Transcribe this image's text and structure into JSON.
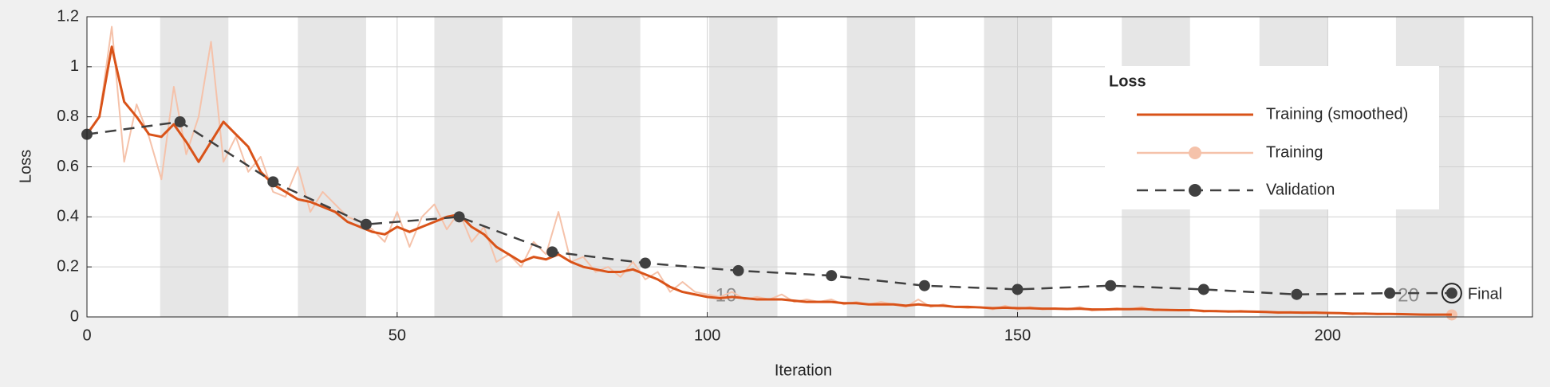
{
  "chart_data": {
    "type": "line",
    "xlabel": "Iteration",
    "ylabel": "Loss",
    "xlim": [
      0,
      233
    ],
    "ylim": [
      0,
      1.2
    ],
    "xticks": [
      0,
      50,
      100,
      150,
      200
    ],
    "yticks": [
      0,
      0.2,
      0.4,
      0.6,
      0.8,
      1,
      1.2
    ],
    "grid": true,
    "epoch_shading": [
      [
        11.8,
        22.8
      ],
      [
        34,
        45
      ],
      [
        56,
        67
      ],
      [
        78.2,
        89.2
      ],
      [
        100.3,
        111.3
      ],
      [
        122.5,
        133.5
      ],
      [
        144.6,
        155.6
      ],
      [
        166.8,
        177.8
      ],
      [
        189,
        200
      ],
      [
        211,
        222
      ]
    ],
    "epoch_labels": [
      {
        "value": 103,
        "label": "10"
      },
      {
        "value": 213,
        "label": "20"
      }
    ],
    "legend_title": "Loss",
    "final_label": "Final",
    "x": [
      0,
      2,
      4,
      6,
      8,
      10,
      12,
      14,
      16,
      18,
      20,
      22,
      24,
      26,
      28,
      30,
      32,
      34,
      36,
      38,
      40,
      42,
      44,
      46,
      48,
      50,
      52,
      54,
      56,
      58,
      60,
      62,
      64,
      66,
      68,
      70,
      72,
      74,
      76,
      78,
      80,
      82,
      84,
      86,
      88,
      90,
      92,
      94,
      96,
      98,
      100,
      102,
      104,
      106,
      108,
      110,
      112,
      114,
      116,
      118,
      120,
      122,
      124,
      126,
      128,
      130,
      132,
      134,
      136,
      138,
      140,
      142,
      144,
      146,
      148,
      150,
      152,
      154,
      156,
      158,
      160,
      162,
      164,
      166,
      168,
      170,
      172,
      174,
      176,
      178,
      180,
      182,
      184,
      186,
      188,
      190,
      192,
      194,
      196,
      198,
      200,
      202,
      204,
      206,
      208,
      210,
      212,
      214,
      216,
      218,
      220
    ],
    "series": [
      {
        "name": "Training (smoothed)",
        "color": "#d95319",
        "values": [
          0.73,
          0.8,
          1.08,
          0.86,
          0.8,
          0.73,
          0.72,
          0.77,
          0.7,
          0.62,
          0.7,
          0.78,
          0.73,
          0.68,
          0.58,
          0.53,
          0.5,
          0.47,
          0.46,
          0.44,
          0.42,
          0.38,
          0.36,
          0.34,
          0.33,
          0.36,
          0.34,
          0.36,
          0.38,
          0.4,
          0.41,
          0.36,
          0.33,
          0.28,
          0.25,
          0.22,
          0.24,
          0.23,
          0.25,
          0.22,
          0.2,
          0.19,
          0.18,
          0.18,
          0.19,
          0.17,
          0.15,
          0.12,
          0.1,
          0.09,
          0.08,
          0.075,
          0.08,
          0.075,
          0.07,
          0.07,
          0.07,
          0.065,
          0.06,
          0.06,
          0.06,
          0.055,
          0.055,
          0.05,
          0.05,
          0.05,
          0.045,
          0.05,
          0.045,
          0.045,
          0.04,
          0.04,
          0.038,
          0.035,
          0.037,
          0.035,
          0.035,
          0.033,
          0.033,
          0.032,
          0.033,
          0.03,
          0.03,
          0.031,
          0.031,
          0.032,
          0.029,
          0.028,
          0.027,
          0.027,
          0.024,
          0.023,
          0.022,
          0.022,
          0.021,
          0.02,
          0.018,
          0.018,
          0.017,
          0.017,
          0.016,
          0.015,
          0.013,
          0.013,
          0.012,
          0.012,
          0.011,
          0.01,
          0.009,
          0.009,
          0.009
        ]
      },
      {
        "name": "Training",
        "color": "#f5c2aa",
        "values": [
          0.73,
          0.8,
          1.16,
          0.62,
          0.85,
          0.72,
          0.55,
          0.92,
          0.65,
          0.8,
          1.1,
          0.62,
          0.72,
          0.58,
          0.64,
          0.5,
          0.48,
          0.6,
          0.42,
          0.5,
          0.45,
          0.4,
          0.38,
          0.35,
          0.3,
          0.42,
          0.28,
          0.4,
          0.45,
          0.35,
          0.42,
          0.3,
          0.36,
          0.22,
          0.25,
          0.2,
          0.3,
          0.25,
          0.42,
          0.22,
          0.24,
          0.18,
          0.2,
          0.16,
          0.22,
          0.15,
          0.18,
          0.1,
          0.14,
          0.1,
          0.09,
          0.08,
          0.1,
          0.07,
          0.08,
          0.07,
          0.09,
          0.06,
          0.07,
          0.06,
          0.07,
          0.05,
          0.06,
          0.05,
          0.06,
          0.05,
          0.04,
          0.07,
          0.04,
          0.05,
          0.04,
          0.035,
          0.04,
          0.03,
          0.045,
          0.03,
          0.04,
          0.03,
          0.035,
          0.03,
          0.04,
          0.025,
          0.03,
          0.035,
          0.03,
          0.04,
          0.025,
          0.03,
          0.025,
          0.03,
          0.02,
          0.025,
          0.02,
          0.025,
          0.02,
          0.02,
          0.015,
          0.02,
          0.015,
          0.02,
          0.015,
          0.015,
          0.01,
          0.015,
          0.01,
          0.012,
          0.01,
          0.01,
          0.008,
          0.01,
          0.008
        ]
      },
      {
        "name": "Validation",
        "color": "#404040",
        "x": [
          0,
          15,
          30,
          45,
          60,
          75,
          90,
          105,
          120,
          135,
          150,
          165,
          180,
          195,
          210,
          220
        ],
        "values": [
          0.73,
          0.78,
          0.54,
          0.37,
          0.4,
          0.26,
          0.215,
          0.185,
          0.165,
          0.125,
          0.11,
          0.125,
          0.11,
          0.09,
          0.095,
          0.095
        ]
      }
    ]
  }
}
